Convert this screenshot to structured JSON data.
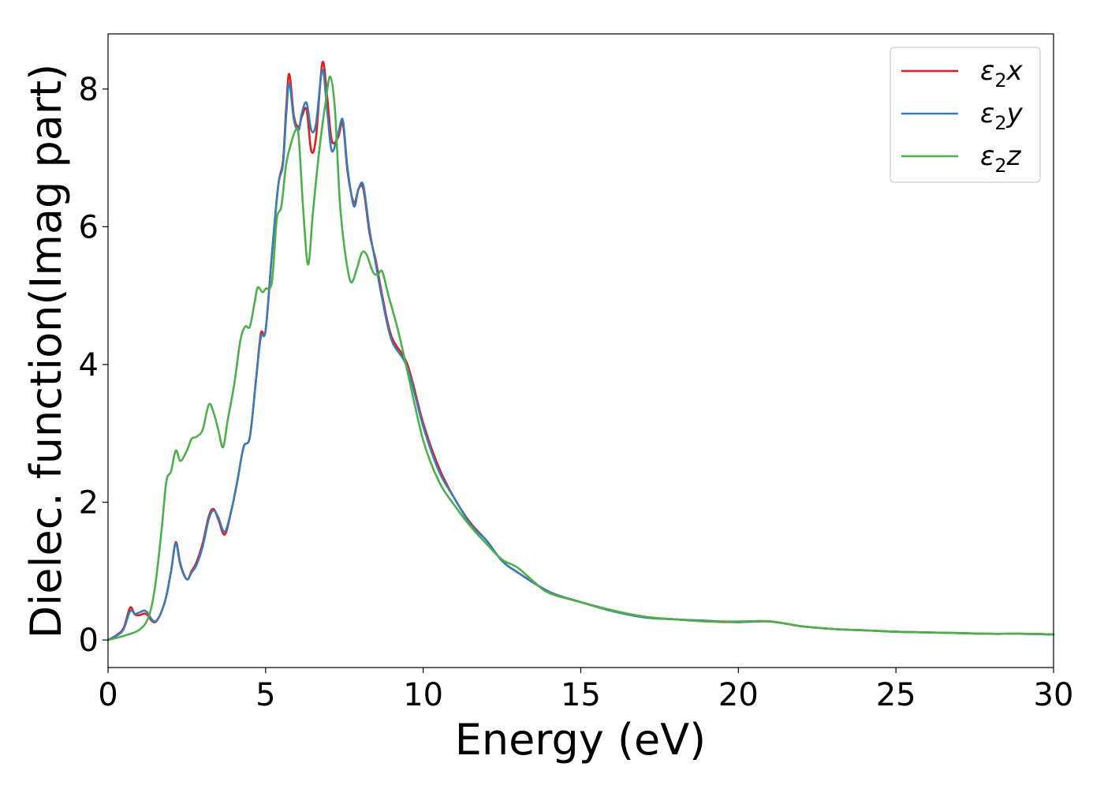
{
  "chart_data": {
    "type": "line",
    "title": "",
    "xlabel": "Energy (eV)",
    "ylabel": "Dielec. function(Imag part)",
    "xlim": [
      0,
      30
    ],
    "ylim": [
      -0.4,
      8.8
    ],
    "xticks": [
      0,
      5,
      10,
      15,
      20,
      25,
      30
    ],
    "xtick_labels": [
      "0",
      "5",
      "10",
      "15",
      "20",
      "25",
      "30"
    ],
    "yticks": [
      0,
      2,
      4,
      6,
      8
    ],
    "ytick_labels": [
      "0",
      "2",
      "4",
      "6",
      "8"
    ],
    "grid": false,
    "legend_position": "top-right",
    "series": [
      {
        "name": "ε₂x",
        "legend_base": "ε",
        "legend_sub": "2",
        "legend_suffix": "x",
        "color": "#e41a1c",
        "x": [
          0,
          0.3,
          0.5,
          0.7,
          0.85,
          1.0,
          1.2,
          1.5,
          1.8,
          2.0,
          2.15,
          2.3,
          2.5,
          2.65,
          2.8,
          3.0,
          3.2,
          3.35,
          3.5,
          3.7,
          3.9,
          4.1,
          4.3,
          4.5,
          4.7,
          4.85,
          5.0,
          5.2,
          5.4,
          5.55,
          5.65,
          5.75,
          5.9,
          6.05,
          6.15,
          6.3,
          6.45,
          6.6,
          6.8,
          6.95,
          7.1,
          7.3,
          7.45,
          7.6,
          7.8,
          7.95,
          8.1,
          8.3,
          8.5,
          8.7,
          9.0,
          9.5,
          10.0,
          10.5,
          11.0,
          11.5,
          12.0,
          12.5,
          13.0,
          14.0,
          15.0,
          16.0,
          17.0,
          18.0,
          19.0,
          20.0,
          21.0,
          22.0,
          23.0,
          24.0,
          25.0,
          26.0,
          27.0,
          28.0,
          29.0,
          30.0
        ],
        "y": [
          0.0,
          0.08,
          0.18,
          0.47,
          0.37,
          0.36,
          0.38,
          0.26,
          0.55,
          1.0,
          1.42,
          1.1,
          0.88,
          1.0,
          1.12,
          1.4,
          1.8,
          1.9,
          1.75,
          1.53,
          1.85,
          2.3,
          2.8,
          2.95,
          3.8,
          4.45,
          4.5,
          5.6,
          6.6,
          6.95,
          7.7,
          8.22,
          7.6,
          7.45,
          7.6,
          7.7,
          7.1,
          7.3,
          8.38,
          7.9,
          7.25,
          7.3,
          7.5,
          6.8,
          6.35,
          6.55,
          6.55,
          5.9,
          5.5,
          5.0,
          4.4,
          4.0,
          3.15,
          2.5,
          2.05,
          1.7,
          1.45,
          1.15,
          0.98,
          0.7,
          0.55,
          0.43,
          0.33,
          0.3,
          0.27,
          0.26,
          0.27,
          0.2,
          0.16,
          0.14,
          0.12,
          0.11,
          0.1,
          0.09,
          0.09,
          0.08
        ]
      },
      {
        "name": "ε₂y",
        "legend_base": "ε",
        "legend_sub": "2",
        "legend_suffix": "y",
        "color": "#377eb8",
        "x": [
          0,
          0.3,
          0.5,
          0.7,
          0.85,
          1.0,
          1.2,
          1.5,
          1.8,
          2.0,
          2.15,
          2.3,
          2.5,
          2.65,
          2.8,
          3.0,
          3.2,
          3.35,
          3.5,
          3.7,
          3.9,
          4.1,
          4.3,
          4.5,
          4.7,
          4.85,
          5.0,
          5.2,
          5.4,
          5.55,
          5.65,
          5.75,
          5.9,
          6.05,
          6.15,
          6.3,
          6.45,
          6.6,
          6.8,
          6.95,
          7.1,
          7.3,
          7.45,
          7.6,
          7.8,
          7.95,
          8.1,
          8.3,
          8.5,
          8.7,
          9.0,
          9.5,
          10.0,
          10.5,
          11.0,
          11.5,
          12.0,
          12.5,
          13.0,
          14.0,
          15.0,
          16.0,
          17.0,
          18.0,
          19.0,
          20.0,
          21.0,
          22.0,
          23.0,
          24.0,
          25.0,
          26.0,
          27.0,
          28.0,
          29.0,
          30.0
        ],
        "y": [
          0.0,
          0.07,
          0.16,
          0.42,
          0.38,
          0.4,
          0.42,
          0.27,
          0.55,
          1.0,
          1.4,
          1.08,
          0.88,
          0.98,
          1.08,
          1.35,
          1.76,
          1.88,
          1.78,
          1.57,
          1.86,
          2.3,
          2.8,
          2.95,
          3.8,
          4.4,
          4.5,
          5.6,
          6.6,
          6.9,
          7.6,
          8.08,
          7.55,
          7.4,
          7.65,
          7.8,
          7.4,
          7.5,
          8.28,
          7.7,
          7.1,
          7.35,
          7.55,
          6.85,
          6.3,
          6.55,
          6.6,
          5.95,
          5.45,
          4.95,
          4.35,
          3.95,
          3.1,
          2.45,
          2.05,
          1.68,
          1.45,
          1.15,
          0.98,
          0.7,
          0.55,
          0.42,
          0.33,
          0.3,
          0.28,
          0.26,
          0.27,
          0.2,
          0.16,
          0.14,
          0.12,
          0.11,
          0.1,
          0.09,
          0.09,
          0.08
        ]
      },
      {
        "name": "ε₂z",
        "legend_base": "ε",
        "legend_sub": "2",
        "legend_suffix": "z",
        "color": "#4daf4a",
        "x": [
          0,
          0.5,
          1.0,
          1.3,
          1.5,
          1.7,
          1.85,
          2.0,
          2.15,
          2.3,
          2.5,
          2.65,
          2.8,
          3.0,
          3.2,
          3.35,
          3.5,
          3.65,
          3.8,
          4.0,
          4.2,
          4.35,
          4.5,
          4.65,
          4.75,
          4.9,
          5.0,
          5.2,
          5.35,
          5.5,
          5.65,
          5.8,
          5.95,
          6.05,
          6.2,
          6.35,
          6.5,
          6.7,
          6.9,
          7.05,
          7.2,
          7.35,
          7.5,
          7.7,
          7.9,
          8.05,
          8.2,
          8.4,
          8.55,
          8.7,
          8.9,
          9.2,
          9.5,
          10.0,
          10.5,
          11.0,
          11.5,
          12.0,
          12.5,
          13.0,
          13.5,
          14.0,
          15.0,
          16.0,
          17.0,
          18.0,
          19.0,
          20.0,
          21.0,
          22.0,
          23.0,
          24.0,
          25.0,
          26.0,
          27.0,
          28.0,
          29.0,
          30.0
        ],
        "y": [
          0.0,
          0.06,
          0.15,
          0.35,
          0.8,
          1.6,
          2.3,
          2.45,
          2.75,
          2.6,
          2.75,
          2.92,
          2.95,
          3.05,
          3.42,
          3.3,
          3.05,
          2.8,
          3.2,
          3.7,
          4.35,
          4.55,
          4.55,
          4.9,
          5.12,
          5.05,
          5.1,
          5.2,
          6.1,
          6.3,
          6.9,
          7.2,
          7.4,
          7.3,
          6.2,
          5.45,
          6.2,
          7.1,
          7.8,
          8.18,
          7.7,
          6.4,
          5.7,
          5.2,
          5.4,
          5.62,
          5.6,
          5.35,
          5.3,
          5.35,
          5.0,
          4.5,
          3.9,
          2.9,
          2.3,
          1.95,
          1.65,
          1.4,
          1.17,
          1.05,
          0.85,
          0.68,
          0.55,
          0.43,
          0.34,
          0.3,
          0.27,
          0.27,
          0.27,
          0.2,
          0.16,
          0.14,
          0.12,
          0.11,
          0.1,
          0.09,
          0.09,
          0.08
        ]
      }
    ]
  }
}
